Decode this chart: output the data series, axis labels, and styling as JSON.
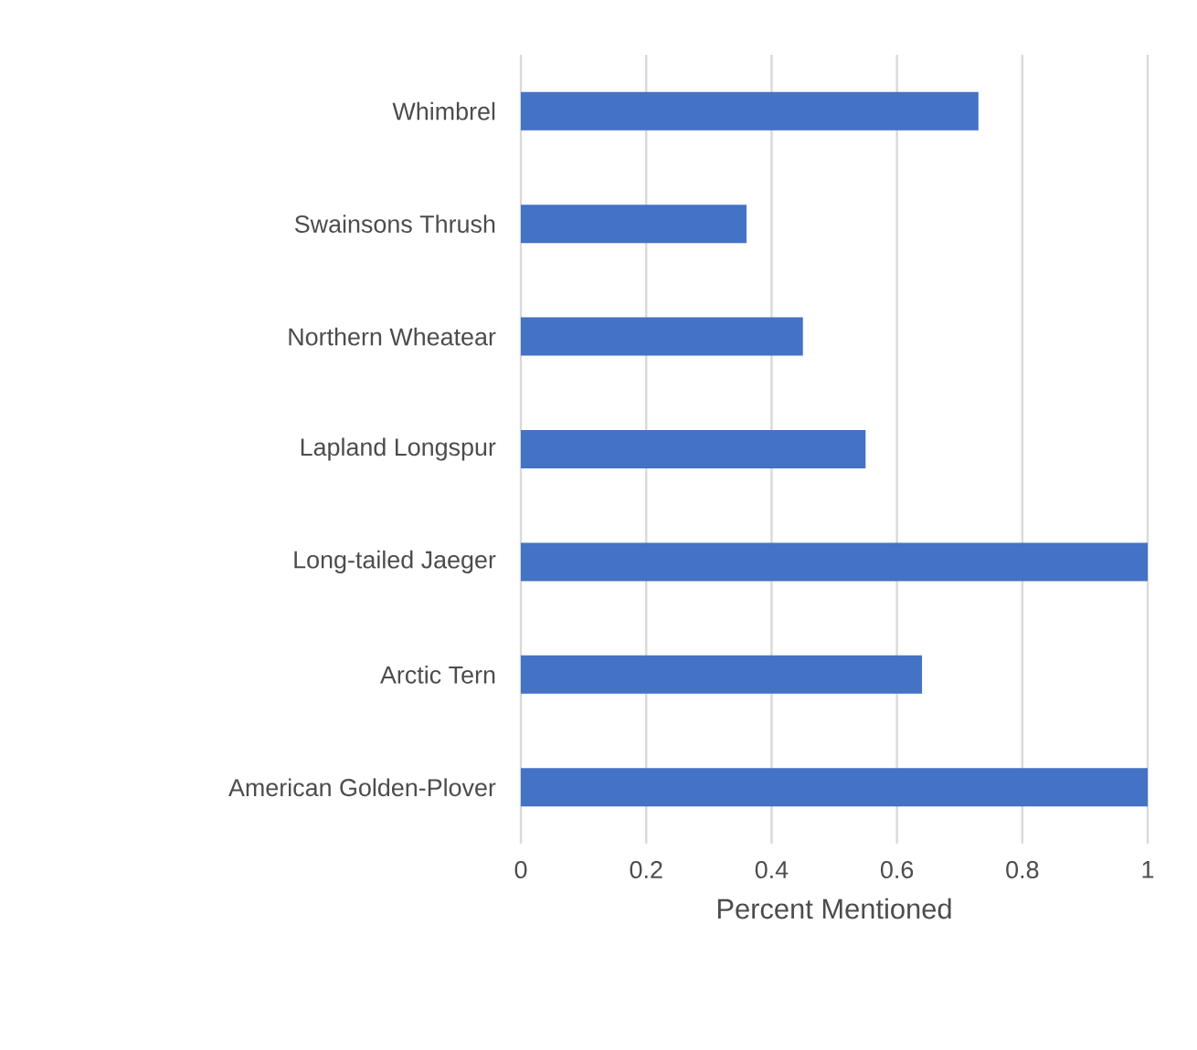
{
  "chart_data": {
    "type": "bar",
    "orientation": "horizontal",
    "categories": [
      "Whimbrel",
      "Swainsons Thrush",
      "Northern Wheatear",
      "Lapland Longspur",
      "Long-tailed Jaeger",
      "Arctic Tern",
      "American Golden-Plover"
    ],
    "values": [
      0.73,
      0.36,
      0.45,
      0.55,
      1,
      0.64,
      1
    ],
    "color": "#4472c4",
    "xlabel": "Percent Mentioned",
    "xlim": [
      0,
      1
    ],
    "xticks": [
      0,
      0.2,
      0.4,
      0.6,
      0.8,
      1
    ],
    "grid": "x"
  }
}
